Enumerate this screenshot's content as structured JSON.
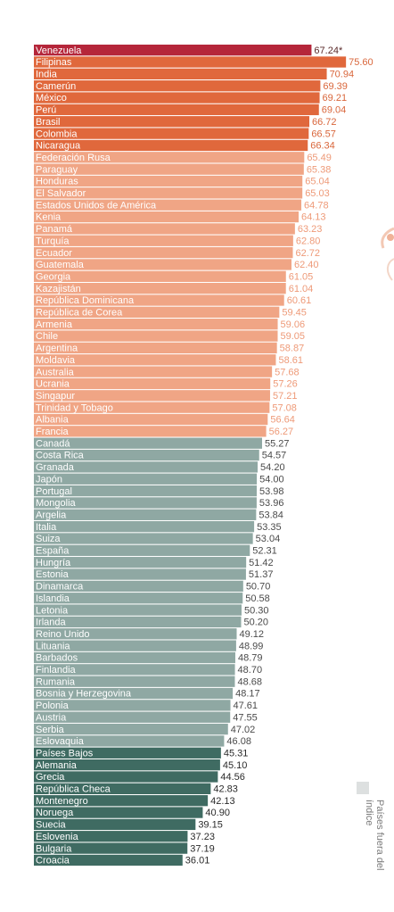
{
  "chart_data": {
    "type": "bar",
    "orientation": "horizontal",
    "xlim": [
      0,
      76
    ],
    "categories": [
      "Venezuela",
      "Filipinas",
      "India",
      "Camerún",
      "México",
      "Perú",
      "Brasil",
      "Colombia",
      "Nicaragua",
      "Federación Rusa",
      "Paraguay",
      "Honduras",
      "El Salvador",
      "Estados Unidos de América",
      "Kenia",
      "Panamá",
      "Turquía",
      "Ecuador",
      "Guatemala",
      "Georgia",
      "Kazajistán",
      "República Dominicana",
      "República de Corea",
      "Armenia",
      "Chile",
      "Argentina",
      "Moldavia",
      "Australia",
      "Ucrania",
      "Singapur",
      "Trinidad y Tobago",
      "Albania",
      "Francia",
      "Canadá",
      "Costa Rica",
      "Granada",
      "Japón",
      "Portugal",
      "Mongolia",
      "Argelia",
      "Italia",
      "Suiza",
      "España",
      "Hungría",
      "Estonia",
      "Dinamarca",
      "Islandia",
      "Letonia",
      "Irlanda",
      "Reino Unido",
      "Lituania",
      "Barbados",
      "Finlandia",
      "Rumania",
      "Bosnia y Herzegovina",
      "Polonia",
      "Austria",
      "Serbia",
      "Eslovaquia",
      "Países Bajos",
      "Alemania",
      "Grecia",
      "República Checa",
      "Montenegro",
      "Noruega",
      "Suecia",
      "Eslovenia",
      "Bulgaria",
      "Croacia"
    ],
    "values": [
      67.24,
      75.6,
      70.94,
      69.39,
      69.21,
      69.04,
      66.72,
      66.57,
      66.34,
      65.49,
      65.38,
      65.04,
      65.03,
      64.78,
      64.13,
      63.23,
      62.8,
      62.72,
      62.4,
      61.05,
      61.04,
      60.61,
      59.45,
      59.06,
      59.05,
      58.87,
      58.61,
      57.68,
      57.26,
      57.21,
      57.08,
      56.64,
      56.27,
      55.27,
      54.57,
      54.2,
      54.0,
      53.98,
      53.96,
      53.84,
      53.35,
      53.04,
      52.31,
      51.42,
      51.37,
      50.7,
      50.58,
      50.3,
      50.2,
      49.12,
      48.99,
      48.79,
      48.7,
      48.68,
      48.17,
      47.61,
      47.55,
      47.02,
      46.08,
      45.31,
      45.1,
      44.56,
      42.83,
      42.13,
      40.9,
      39.15,
      37.23,
      37.19,
      36.01
    ],
    "value_labels": [
      "67.24*",
      "75.60",
      "70.94",
      "69.39",
      "69.21",
      "69.04",
      "66.72",
      "66.57",
      "66.34",
      "65.49",
      "65.38",
      "65.04",
      "65.03",
      "64.78",
      "64.13",
      "63.23",
      "62.80",
      "62.72",
      "62.40",
      "61.05",
      "61.04",
      "60.61",
      "59.45",
      "59.06",
      "59.05",
      "58.87",
      "58.61",
      "57.68",
      "57.26",
      "57.21",
      "57.08",
      "56.64",
      "56.27",
      "55.27",
      "54.57",
      "54.20",
      "54.00",
      "53.98",
      "53.96",
      "53.84",
      "53.35",
      "53.04",
      "52.31",
      "51.42",
      "51.37",
      "50.70",
      "50.58",
      "50.30",
      "50.20",
      "49.12",
      "48.99",
      "48.79",
      "48.70",
      "48.68",
      "48.17",
      "47.61",
      "47.55",
      "47.02",
      "46.08",
      "45.31",
      "45.10",
      "44.56",
      "42.83",
      "42.13",
      "40.90",
      "39.15",
      "37.23",
      "37.19",
      "36.01"
    ],
    "color_groups": [
      {
        "from": 0,
        "to": 0,
        "color": "#b5263a",
        "label_color": "#5a2a2a"
      },
      {
        "from": 1,
        "to": 8,
        "color": "#e0683c",
        "label_color": "#d9663b"
      },
      {
        "from": 9,
        "to": 32,
        "color": "#f0a585",
        "label_color": "#ee9a78"
      },
      {
        "from": 33,
        "to": 58,
        "color": "#8fa8a3",
        "label_color": "#4a4a4a"
      },
      {
        "from": 59,
        "to": 68,
        "color": "#3f6b62",
        "label_color": "#2a2a2a"
      }
    ],
    "legend": {
      "color": "#dde0e0",
      "label": "Países fuera del índice"
    }
  }
}
